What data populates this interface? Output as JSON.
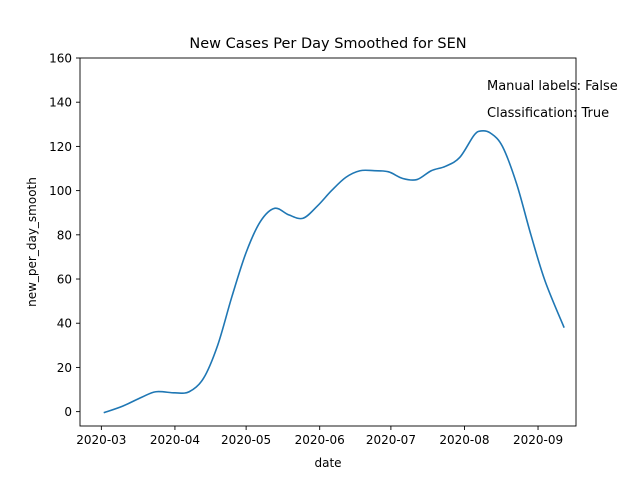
{
  "chart_data": {
    "type": "line",
    "title": "New Cases Per Day Smoothed for SEN",
    "xlabel": "date",
    "ylabel": "new_per_day_smooth",
    "xlim": [
      "2020-02-21",
      "2020-09-17"
    ],
    "ylim": [
      -6.5,
      160
    ],
    "x_ticks": [
      "2020-03-01",
      "2020-04-01",
      "2020-05-01",
      "2020-06-01",
      "2020-07-01",
      "2020-08-01",
      "2020-09-01"
    ],
    "x_tick_labels": [
      "2020-03",
      "2020-04",
      "2020-05",
      "2020-06",
      "2020-07",
      "2020-08",
      "2020-09"
    ],
    "y_ticks": [
      0,
      20,
      40,
      60,
      80,
      100,
      120,
      140,
      160
    ],
    "grid": false,
    "annotations": [
      "Manual labels: False",
      "Classification: True"
    ],
    "color": "#1f77b4",
    "series": [
      {
        "x": [
          "2020-03-02",
          "2020-03-10",
          "2020-03-18",
          "2020-03-24",
          "2020-04-01",
          "2020-04-07",
          "2020-04-13",
          "2020-04-19",
          "2020-04-25",
          "2020-05-01",
          "2020-05-07",
          "2020-05-13",
          "2020-05-19",
          "2020-05-25",
          "2020-05-31",
          "2020-06-06",
          "2020-06-12",
          "2020-06-18",
          "2020-06-24",
          "2020-06-30",
          "2020-07-06",
          "2020-07-12",
          "2020-07-18",
          "2020-07-24",
          "2020-07-30",
          "2020-08-05",
          "2020-08-08",
          "2020-08-12",
          "2020-08-17",
          "2020-08-23",
          "2020-08-29",
          "2020-09-04",
          "2020-09-12"
        ],
        "values": [
          -0.5,
          2.5,
          6.5,
          9,
          8.5,
          9,
          15,
          30,
          52,
          72,
          86,
          92,
          89,
          87.5,
          93,
          100,
          106,
          109,
          109,
          108.5,
          105.5,
          105,
          109,
          111,
          115,
          125,
          127,
          126,
          120,
          103,
          80,
          59,
          38
        ]
      }
    ]
  }
}
